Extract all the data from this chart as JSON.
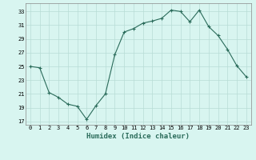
{
  "x": [
    0,
    1,
    2,
    3,
    4,
    5,
    6,
    7,
    8,
    9,
    10,
    11,
    12,
    13,
    14,
    15,
    16,
    17,
    18,
    19,
    20,
    21,
    22,
    23
  ],
  "y": [
    25,
    24.8,
    21.2,
    20.5,
    19.5,
    19.2,
    17.3,
    19.3,
    21.0,
    26.7,
    30.0,
    30.5,
    31.3,
    31.6,
    32.0,
    33.2,
    33.0,
    31.5,
    33.2,
    30.8,
    29.5,
    27.5,
    25.1,
    23.5
  ],
  "xlabel": "Humidex (Indice chaleur)",
  "yticks": [
    17,
    19,
    21,
    23,
    25,
    27,
    29,
    31,
    33
  ],
  "xticks": [
    0,
    1,
    2,
    3,
    4,
    5,
    6,
    7,
    8,
    9,
    10,
    11,
    12,
    13,
    14,
    15,
    16,
    17,
    18,
    19,
    20,
    21,
    22,
    23
  ],
  "ylim": [
    16.5,
    34.2
  ],
  "xlim": [
    -0.5,
    23.5
  ],
  "line_color": "#2a6b5a",
  "marker": "+",
  "bg_color": "#d8f5f0",
  "grid_color": "#b8dcd5",
  "title": ""
}
